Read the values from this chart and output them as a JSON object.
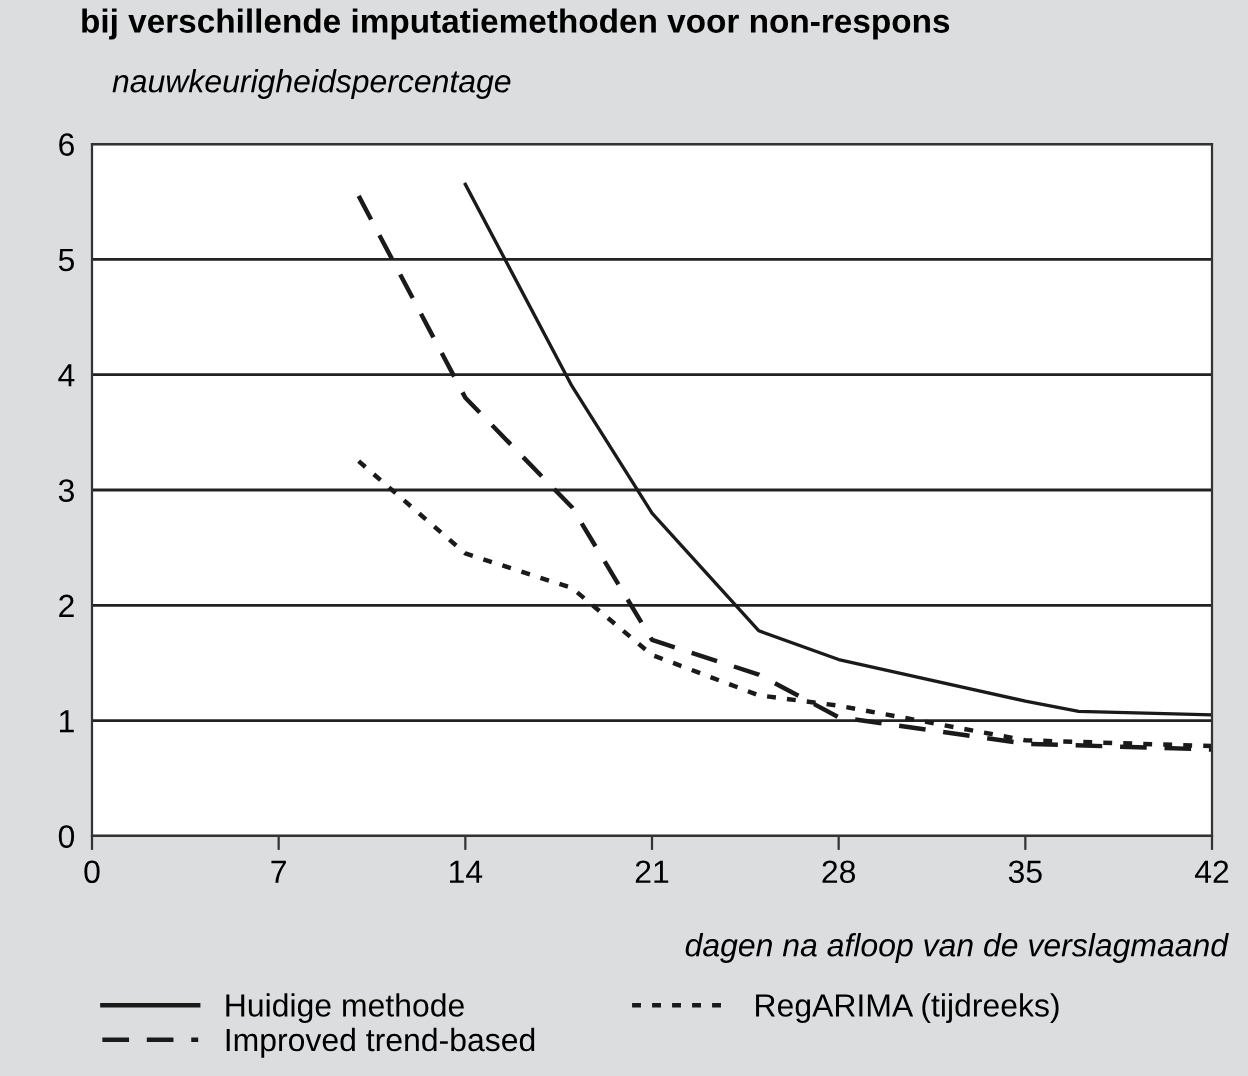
{
  "chart_data": {
    "type": "line",
    "title": "bij verschillende imputatiemethoden voor non-respons",
    "ylabel": "nauwkeurigheidspercentage",
    "xlabel": "dagen na afloop van de verslagmaand",
    "xlim": [
      0,
      42
    ],
    "xticks": [
      0,
      7,
      14,
      21,
      28,
      35,
      42
    ],
    "ylim": [
      0,
      6
    ],
    "yticks": [
      0,
      1,
      2,
      3,
      4,
      5,
      6
    ],
    "grid": "y",
    "legend": "bottom",
    "marker": "none",
    "series": [
      {
        "name": "Huidige methode",
        "color": "#1a1a1a",
        "line_style": "solid",
        "x": [
          14,
          18,
          21,
          25,
          28,
          35,
          37,
          42
        ],
        "values": [
          5.65,
          3.9,
          2.8,
          1.78,
          1.53,
          1.17,
          1.08,
          1.05
        ]
      },
      {
        "name": "Improved trend-based",
        "color": "#1a1a1a",
        "line_style": "dashed",
        "x": [
          10,
          14,
          18,
          21,
          25,
          28,
          35,
          42
        ],
        "values": [
          5.55,
          3.8,
          2.85,
          1.7,
          1.4,
          1.03,
          0.8,
          0.75
        ]
      },
      {
        "name": "RegARIMA (tijdreeks)",
        "color": "#1a1a1a",
        "line_style": "dotted",
        "x": [
          10,
          14,
          18,
          21,
          25,
          28,
          35,
          42
        ],
        "values": [
          3.25,
          2.45,
          2.15,
          1.57,
          1.22,
          1.13,
          0.83,
          0.78
        ]
      }
    ]
  }
}
